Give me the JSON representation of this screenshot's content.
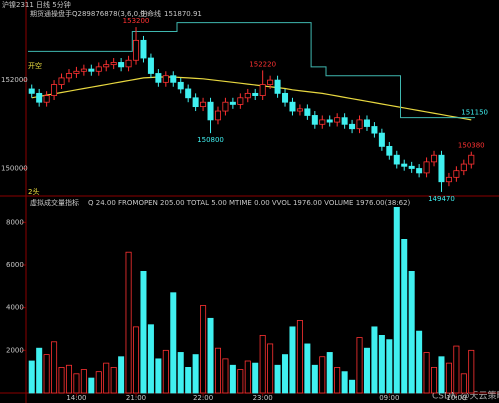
{
  "chart_data": [
    {
      "type": "candlestick",
      "title": "沪镍2311 日线 5分钟",
      "subtitle": "期货通操盘手Q289876878(3,6,0,0)",
      "ma_label": "生命线",
      "ma_value": "151870.91",
      "signal": "开空",
      "marker": "2头",
      "ylim": [
        149400,
        153700
      ],
      "yticks": [
        150000,
        152000
      ],
      "up_color": "#ff3232",
      "down_color": "#40f0f0",
      "open": [
        151800,
        151700,
        151500,
        151650,
        151900,
        152050,
        152150,
        152200,
        152250,
        152200,
        152300,
        152350,
        152400,
        152300,
        152450,
        152900,
        152500,
        152150,
        151950,
        152100,
        151950,
        151800,
        151600,
        151400,
        151500,
        151100,
        151300,
        151500,
        151450,
        151600,
        151700,
        151650,
        151900,
        152000,
        151700,
        151500,
        151300,
        151350,
        151200,
        151000,
        151100,
        151050,
        151150,
        151000,
        150900,
        151100,
        150950,
        150800,
        150500,
        150300,
        150100,
        150050,
        150000,
        149900,
        150150,
        150300,
        149700,
        149800,
        149950,
        150100
      ],
      "high": [
        151900,
        151800,
        151750,
        152000,
        152150,
        152250,
        152300,
        152350,
        152350,
        152400,
        152450,
        152500,
        152500,
        152550,
        153200,
        153000,
        152600,
        152250,
        152200,
        152200,
        152050,
        151900,
        151700,
        151600,
        151600,
        151400,
        151600,
        151600,
        151700,
        151800,
        151800,
        152220,
        152100,
        152100,
        151800,
        151600,
        151450,
        151450,
        151300,
        151200,
        151200,
        151250,
        151250,
        151100,
        151200,
        151200,
        151050,
        150900,
        150600,
        150400,
        150200,
        150150,
        150100,
        150250,
        150400,
        150400,
        149900,
        150050,
        150200,
        150380
      ],
      "low": [
        151600,
        151400,
        151400,
        151550,
        151800,
        151950,
        152050,
        152100,
        152100,
        152100,
        152200,
        152250,
        152200,
        152200,
        152350,
        152400,
        152050,
        151850,
        151850,
        151850,
        151700,
        151500,
        151300,
        151300,
        150800,
        151000,
        151200,
        151350,
        151350,
        151500,
        151550,
        151550,
        151800,
        151600,
        151400,
        151200,
        151200,
        151100,
        150900,
        150900,
        150950,
        150950,
        150900,
        150800,
        150800,
        150850,
        150700,
        150400,
        150200,
        150000,
        149950,
        149900,
        149800,
        149800,
        150050,
        149470,
        149600,
        149700,
        149850,
        150000
      ],
      "close": [
        151700,
        151500,
        151650,
        151900,
        152050,
        152150,
        152200,
        152250,
        152200,
        152300,
        152350,
        152400,
        152300,
        152450,
        152900,
        152500,
        152150,
        151950,
        152100,
        151950,
        151800,
        151600,
        151400,
        151500,
        151100,
        151300,
        151500,
        151450,
        151600,
        151700,
        151650,
        151900,
        152000,
        151700,
        151500,
        151300,
        151350,
        151200,
        151000,
        151100,
        151050,
        151150,
        151000,
        150900,
        151100,
        150950,
        150800,
        150500,
        150300,
        150100,
        150050,
        150000,
        149900,
        150150,
        150300,
        149700,
        149800,
        149950,
        150100,
        150300
      ],
      "lines": [
        {
          "name": "生命线",
          "color": "#e8d840",
          "style": "line",
          "values": [
            151600,
            151630,
            151660,
            151690,
            151720,
            151750,
            151780,
            151810,
            151840,
            151870,
            151900,
            151930,
            151960,
            151990,
            152020,
            152050,
            152060,
            152070,
            152070,
            152070,
            152060,
            152050,
            152040,
            152030,
            152010,
            151990,
            151970,
            151950,
            151930,
            151910,
            151890,
            151870,
            151850,
            151830,
            151810,
            151780,
            151760,
            151740,
            151720,
            151700,
            151670,
            151640,
            151610,
            151580,
            151550,
            151520,
            151490,
            151460,
            151430,
            151400,
            151370,
            151340,
            151310,
            151280,
            151250,
            151220,
            151190,
            151160,
            151130,
            151100
          ]
        },
        {
          "color": "#3fb8b0",
          "style": "step",
          "values": [
            152650,
            152650,
            152650,
            152650,
            152650,
            152650,
            152650,
            152650,
            152650,
            152650,
            152650,
            152650,
            152650,
            152650,
            153100,
            153100,
            153100,
            153100,
            153100,
            153100,
            153300,
            153300,
            153300,
            153300,
            153300,
            153300,
            153300,
            153300,
            153300,
            153300,
            153300,
            153300,
            153300,
            153300,
            153300,
            153300,
            153300,
            153300,
            152300,
            152300,
            152100,
            152100,
            152100,
            152100,
            152100,
            152100,
            152100,
            152100,
            152100,
            152100,
            151150,
            151150,
            151150,
            151150,
            151150,
            151150,
            151150,
            151150,
            151150,
            151150
          ]
        }
      ],
      "high_labels": [
        153200,
        152220,
        150380
      ],
      "low_labels": [
        150800,
        149470
      ]
    },
    {
      "type": "bar",
      "title": "虚拟成交量指标",
      "subtitle": "Q 24.00  FROMOPEN 205.00  TOTAL 5.00  MTIME 0.00  VVOL 1976.00  VOLUME 1976.00(38:62)",
      "ylim": [
        0,
        9000
      ],
      "yticks": [
        2000,
        4000,
        6000,
        8000
      ],
      "categories": [
        null,
        null,
        null,
        null,
        null,
        null,
        "14:00",
        null,
        null,
        null,
        null,
        null,
        null,
        null,
        "21:00",
        null,
        null,
        null,
        null,
        null,
        null,
        null,
        null,
        "22:00",
        null,
        null,
        null,
        null,
        null,
        null,
        null,
        "23:00",
        null,
        null,
        null,
        null,
        null,
        null,
        null,
        null,
        null,
        null,
        null,
        null,
        null,
        null,
        null,
        null,
        "09:00",
        null,
        null,
        null,
        null,
        null,
        null,
        null,
        null,
        "10:00",
        null,
        null
      ],
      "values": [
        1500,
        2100,
        1800,
        2400,
        1200,
        1300,
        900,
        1100,
        700,
        1000,
        1400,
        1200,
        1700,
        6600,
        3100,
        5700,
        3200,
        1600,
        2000,
        4700,
        1900,
        1200,
        1800,
        4100,
        3500,
        2100,
        1600,
        1300,
        1100,
        1500,
        1400,
        2700,
        2300,
        1300,
        1800,
        3100,
        3400,
        2300,
        1300,
        1700,
        1900,
        1200,
        1000,
        600,
        2600,
        2100,
        3100,
        2700,
        2500,
        8700,
        7200,
        5700,
        2900,
        1900,
        1200,
        1700,
        1400,
        2200,
        900,
        2000
      ]
    }
  ],
  "watermark": "CSDN @天云策略"
}
